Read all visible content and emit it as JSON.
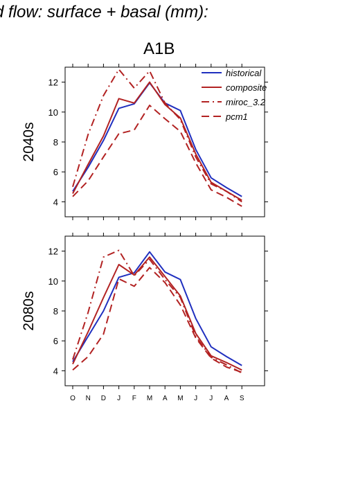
{
  "header": {
    "title": "d flow: surface + basal (mm):",
    "scenario": "A1B"
  },
  "chart_data": [
    {
      "type": "line",
      "panel_label": "2040s",
      "ylim": [
        3,
        13
      ],
      "yticks": [
        4,
        6,
        8,
        10,
        12
      ],
      "categories": [
        "O",
        "N",
        "D",
        "J",
        "F",
        "M",
        "A",
        "M",
        "J",
        "J",
        "A",
        "S"
      ],
      "legend_position": "top-right",
      "series": [
        {
          "name": "historical",
          "color": "#1f2fbf",
          "dash": "solid",
          "values": [
            4.7,
            6.3,
            8.1,
            10.25,
            10.55,
            11.95,
            10.6,
            10.1,
            7.5,
            5.6,
            4.95,
            4.35
          ]
        },
        {
          "name": "composite",
          "color": "#b22222",
          "dash": "solid",
          "values": [
            4.55,
            6.5,
            8.4,
            10.9,
            10.6,
            12.0,
            10.5,
            9.6,
            7.2,
            5.3,
            4.7,
            4.1
          ]
        },
        {
          "name": "miroc_3.2",
          "color": "#b22222",
          "dash": "dashdot",
          "values": [
            5.0,
            8.5,
            11.1,
            12.85,
            11.6,
            12.75,
            10.6,
            9.5,
            7.0,
            5.2,
            4.7,
            4.0
          ]
        },
        {
          "name": "pcm1",
          "color": "#b22222",
          "dash": "dashed",
          "values": [
            4.35,
            5.4,
            7.0,
            8.55,
            8.8,
            10.45,
            9.55,
            8.7,
            6.6,
            4.8,
            4.3,
            3.7
          ]
        }
      ]
    },
    {
      "type": "line",
      "panel_label": "2080s",
      "ylim": [
        3,
        13
      ],
      "yticks": [
        4,
        6,
        8,
        10,
        12
      ],
      "categories": [
        "O",
        "N",
        "D",
        "J",
        "F",
        "M",
        "A",
        "M",
        "J",
        "J",
        "A",
        "S"
      ],
      "series": [
        {
          "name": "historical",
          "color": "#1f2fbf",
          "dash": "solid",
          "values": [
            4.6,
            6.3,
            8.0,
            10.25,
            10.55,
            11.95,
            10.6,
            10.1,
            7.5,
            5.6,
            4.95,
            4.35
          ]
        },
        {
          "name": "composite",
          "color": "#b22222",
          "dash": "solid",
          "values": [
            4.45,
            6.6,
            8.9,
            11.1,
            10.4,
            11.6,
            10.3,
            9.0,
            6.5,
            5.0,
            4.55,
            4.05
          ]
        },
        {
          "name": "miroc_3.2",
          "color": "#b22222",
          "dash": "dashdot",
          "values": [
            4.75,
            7.9,
            11.6,
            12.05,
            10.35,
            11.45,
            10.1,
            8.9,
            6.3,
            4.9,
            4.4,
            3.85
          ]
        },
        {
          "name": "pcm1",
          "color": "#b22222",
          "dash": "dashed",
          "values": [
            4.05,
            4.95,
            6.45,
            10.15,
            9.65,
            10.9,
            9.9,
            8.4,
            6.2,
            4.85,
            4.25,
            3.9
          ]
        }
      ]
    }
  ]
}
